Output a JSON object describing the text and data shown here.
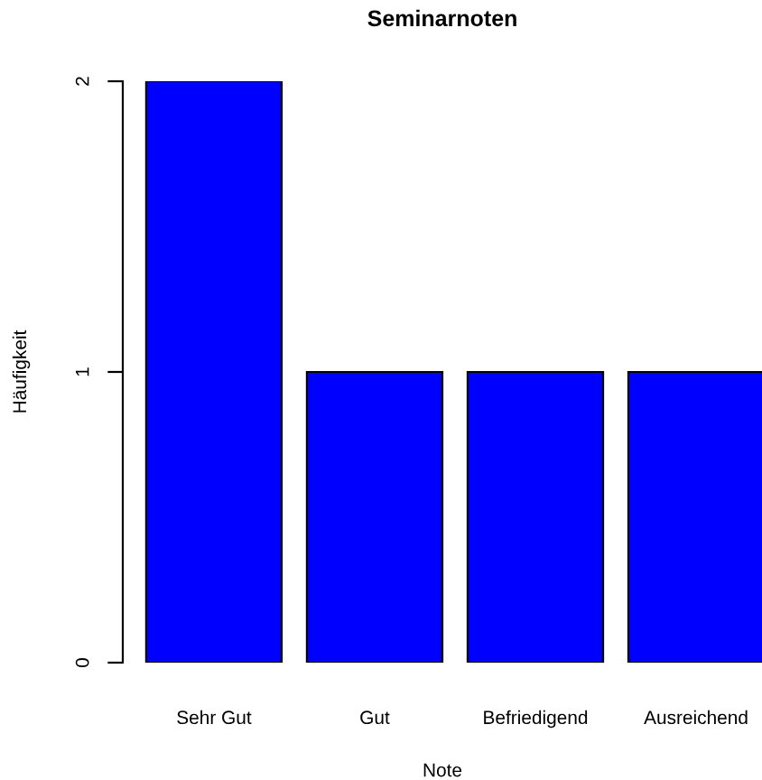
{
  "chart_data": {
    "type": "bar",
    "title": "Seminarnoten",
    "xlabel": "Note",
    "ylabel": "Häufigkeit",
    "categories": [
      "Sehr Gut",
      "Gut",
      "Befriedigend",
      "Ausreichend"
    ],
    "values": [
      2,
      1,
      1,
      1
    ],
    "color": "#0000ff",
    "ylim": [
      0,
      2
    ],
    "yticks": [
      0,
      1,
      2
    ],
    "grid": false,
    "legend": false
  }
}
